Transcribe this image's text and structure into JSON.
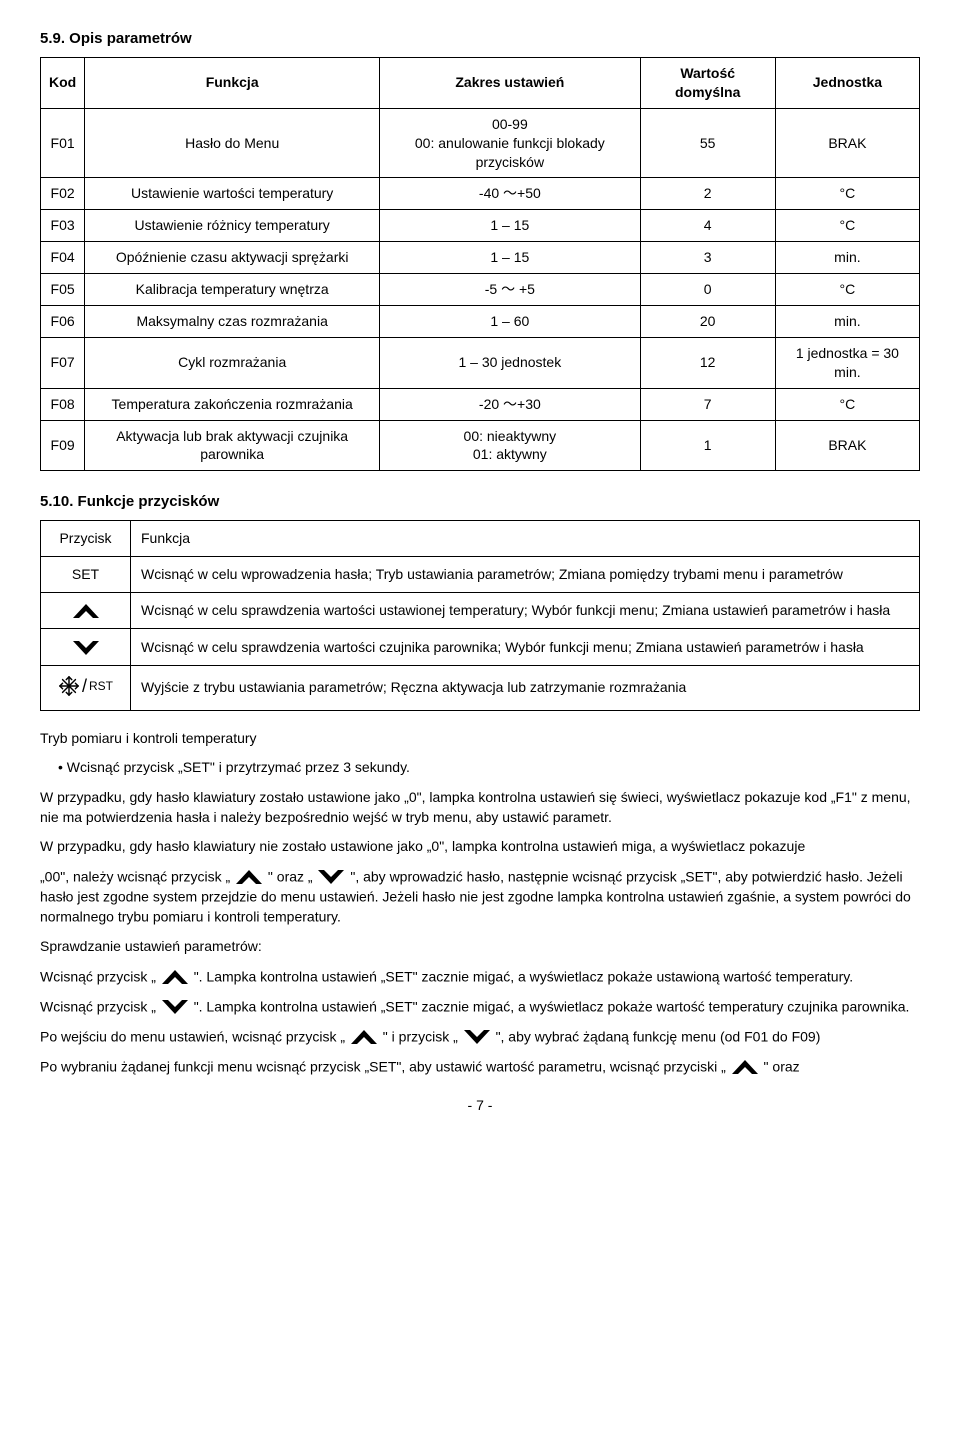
{
  "section1_heading": "5.9. Opis parametrów",
  "params_headers": {
    "kod": "Kod",
    "funkcja": "Funkcja",
    "zakres": "Zakres ustawień",
    "domyslna": "Wartość domyślna",
    "jednostka": "Jednostka"
  },
  "params": [
    {
      "kod": "F01",
      "funkcja": "Hasło do Menu",
      "zakres": "00-99\n00: anulowanie funkcji blokady przycisków",
      "domyslna": "55",
      "jednostka": "BRAK"
    },
    {
      "kod": "F02",
      "funkcja": "Ustawienie wartości temperatury",
      "zakres": "-40 ～+50",
      "domyslna": "2",
      "jednostka": "°C"
    },
    {
      "kod": "F03",
      "funkcja": "Ustawienie różnicy temperatury",
      "zakres": "1 – 15",
      "domyslna": "4",
      "jednostka": "°C"
    },
    {
      "kod": "F04",
      "funkcja": "Opóźnienie czasu aktywacji sprężarki",
      "zakres": "1 – 15",
      "domyslna": "3",
      "jednostka": "min."
    },
    {
      "kod": "F05",
      "funkcja": "Kalibracja temperatury wnętrza",
      "zakres": "-5 ～ +5",
      "domyslna": "0",
      "jednostka": "°C"
    },
    {
      "kod": "F06",
      "funkcja": "Maksymalny czas rozmrażania",
      "zakres": "1 – 60",
      "domyslna": "20",
      "jednostka": "min."
    },
    {
      "kod": "F07",
      "funkcja": "Cykl rozmrażania",
      "zakres": "1 – 30 jednostek",
      "domyslna": "12",
      "jednostka": "1 jednostka = 30 min."
    },
    {
      "kod": "F08",
      "funkcja": "Temperatura zakończenia rozmrażania",
      "zakres": "-20 ～+30",
      "domyslna": "7",
      "jednostka": "°C"
    },
    {
      "kod": "F09",
      "funkcja": "Aktywacja lub brak aktywacji czujnika parownika",
      "zakres": "00: nieaktywny\n01: aktywny",
      "domyslna": "1",
      "jednostka": "BRAK"
    }
  ],
  "section2_heading": "5.10. Funkcje przycisków",
  "funcs_headers": {
    "przycisk": "Przycisk",
    "funkcja": "Funkcja"
  },
  "funcs": {
    "set_label": "SET",
    "set_text": "Wcisnąć w celu wprowadzenia hasła; Tryb ustawiania parametrów; Zmiana pomiędzy trybami menu i parametrów",
    "up_text": "Wcisnąć w celu sprawdzenia wartości ustawionej temperatury; Wybór funkcji menu; Zmiana ustawień parametrów i hasła",
    "down_text": "Wcisnąć w celu sprawdzenia wartości czujnika parownika; Wybór funkcji menu; Zmiana ustawień parametrów i hasła",
    "rst_label": "RST",
    "rst_text": "Wyjście z trybu ustawiania parametrów; Ręczna aktywacja lub zatrzymanie rozmrażania"
  },
  "body": {
    "tryb_heading": "Tryb pomiaru i kontroli temperatury",
    "bullet1": "Wcisnąć przycisk „SET\" i przytrzymać przez 3 sekundy.",
    "p1": "W przypadku, gdy hasło klawiatury zostało ustawione jako „0\", lampka kontrolna ustawień się świeci, wyświetlacz pokazuje kod „F1\" z menu, nie ma potwierdzenia hasła i należy bezpośrednio wejść w tryb menu, aby ustawić parametr.",
    "p2a": "W przypadku, gdy hasło klawiatury nie zostało ustawione jako „0\", lampka kontrolna ustawień miga, a wyświetlacz pokazuje",
    "p2b_1": "„00\", należy wcisnąć przycisk „",
    "p2b_2": "\" oraz „",
    "p2b_3": "\", aby wprowadzić hasło, następnie wcisnąć przycisk „SET\", aby",
    "p2c": "potwierdzić hasło. Jeżeli hasło jest zgodne system przejdzie do menu ustawień. Jeżeli hasło nie jest zgodne lampka kontrolna ustawień zgaśnie, a system powróci do normalnego trybu pomiaru i kontroli temperatury.",
    "p3_heading": "Sprawdzanie ustawień parametrów:",
    "p4_1": "Wcisnąć przycisk „",
    "p4_2": "\". Lampka kontrolna ustawień „SET\" zacznie migać, a wyświetlacz pokaże ustawioną wartość temperatury.",
    "p5_1": "Wcisnąć przycisk „",
    "p5_2": "\". Lampka kontrolna ustawień „SET\" zacznie migać, a wyświetlacz pokaże wartość temperatury czujnika parownika.",
    "p6_1": "Po wejściu do menu ustawień, wcisnąć przycisk „",
    "p6_2": "\" i przycisk „",
    "p6_3": "\", aby wybrać żądaną funkcję menu (od F01 do F09)",
    "p7_1": "Po wybraniu żądanej funkcji menu wcisnąć przycisk „SET\", aby ustawić wartość parametru, wcisnąć przyciski „",
    "p7_2": "\" oraz"
  },
  "page_number": "- 7 -",
  "style": {
    "icon_fill": "#000000",
    "icon_up_size": 28,
    "icon_inline_size": 28,
    "border_color": "#000000",
    "bg_color": "#ffffff"
  }
}
